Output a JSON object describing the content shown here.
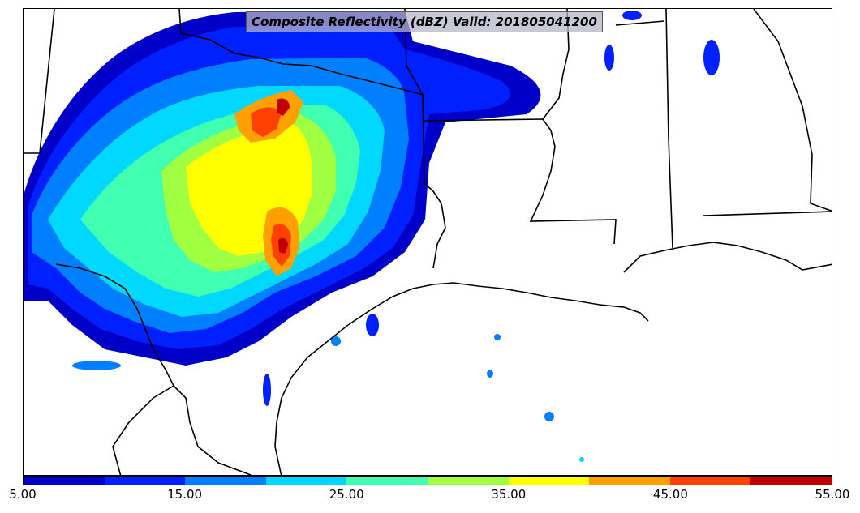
{
  "title": "Composite Reflectivity (dBZ) Valid: 201805041200",
  "colorbar": {
    "colors": [
      "#0000c8",
      "#0020ff",
      "#0080ff",
      "#00d8ff",
      "#40ffb0",
      "#a0ff40",
      "#ffff00",
      "#ffa000",
      "#ff4000",
      "#c00000"
    ],
    "tick_labels": [
      "5.00",
      "15.00",
      "25.00",
      "35.00",
      "45.00",
      "55.00"
    ],
    "min": 5,
    "max": 55
  },
  "layers": [
    "state-boundaries",
    "coastline",
    "country-border",
    "reflectivity"
  ]
}
